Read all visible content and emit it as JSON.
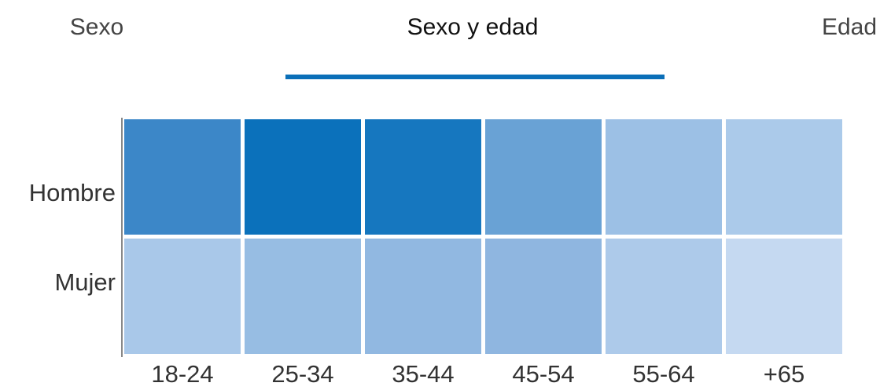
{
  "tabs": [
    {
      "label": "Sexo",
      "selected": false
    },
    {
      "label": "Sexo y edad",
      "selected": true
    },
    {
      "label": "Edad",
      "selected": false
    }
  ],
  "chart_data": {
    "type": "heatmap",
    "rows": [
      "Hombre",
      "Mujer"
    ],
    "columns": [
      "18-24",
      "25-34",
      "35-44",
      "45-54",
      "55-64",
      "+65"
    ],
    "colors": [
      [
        "#3c87c8",
        "#0b71bb",
        "#1677bf",
        "#69a2d5",
        "#9cc0e5",
        "#abcaea"
      ],
      [
        "#a9c8e9",
        "#97bde3",
        "#91b8e1",
        "#8fb6e0",
        "#adcaea",
        "#c5d9f1"
      ]
    ]
  }
}
